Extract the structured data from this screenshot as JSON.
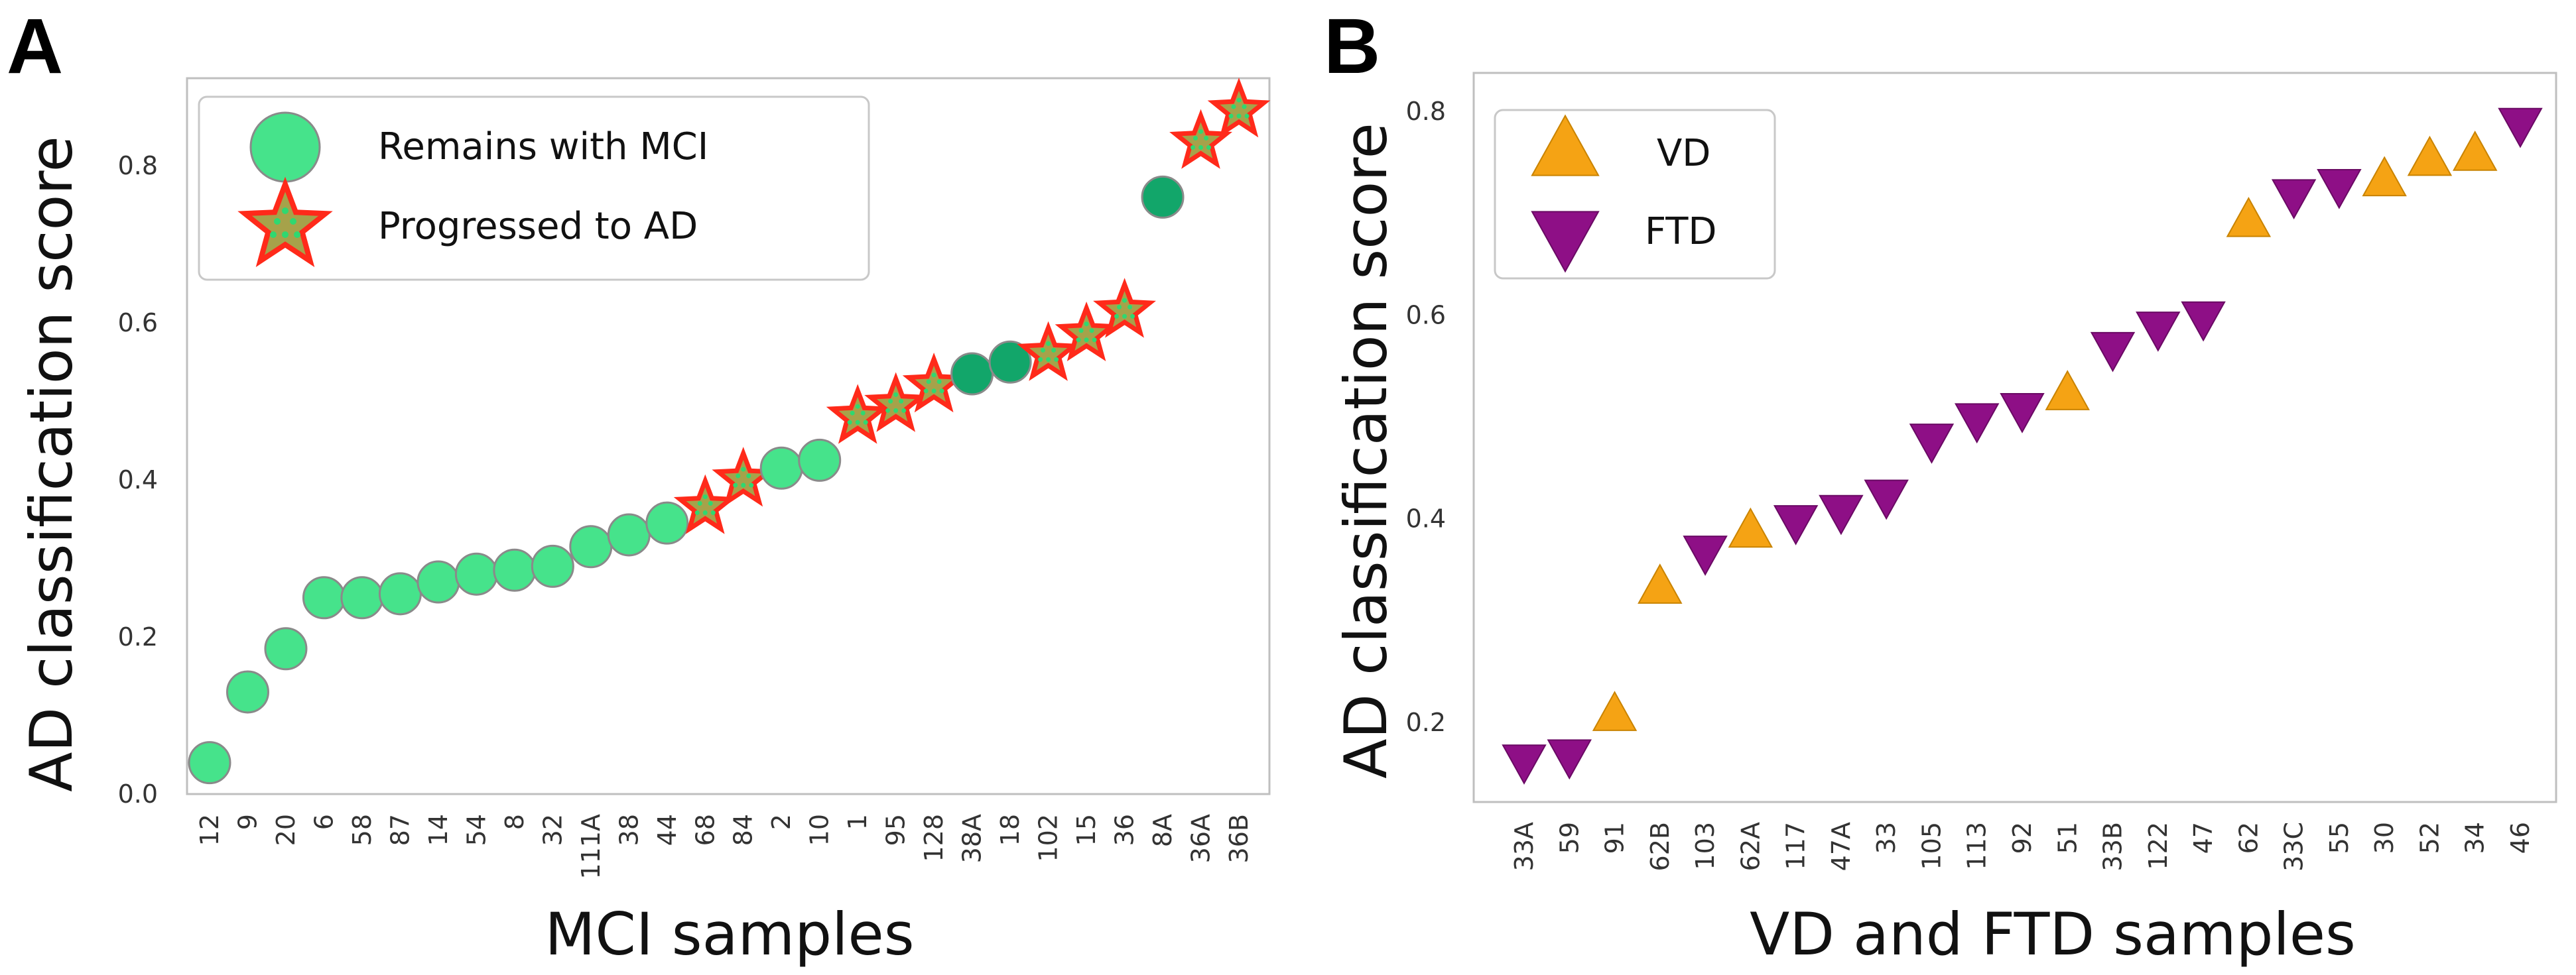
{
  "chart_data": [
    {
      "type": "scatter",
      "panel_label": "A",
      "title": "",
      "xlabel": "MCI samples",
      "ylabel": "AD classification score",
      "ylim": [
        0.0,
        0.9
      ],
      "yticks": [
        "0.0",
        "0.2",
        "0.4",
        "0.6",
        "0.8"
      ],
      "legend_position": "top-left",
      "legend": [
        {
          "label": "Remains with MCI",
          "marker": "circle",
          "color": "#46e38b"
        },
        {
          "label": "Progressed to AD",
          "marker": "star",
          "color": "#a6a24a",
          "edge": "#ff2a1a"
        }
      ],
      "colors": {
        "remains": "#46e38b",
        "remains_dark": "#12a66a",
        "progressed_fill": "#a6a24a",
        "progressed_edge": "#ff2a1a",
        "dots": "#2fd870"
      },
      "categories": [
        "12",
        "9",
        "20",
        "6",
        "58",
        "87",
        "14",
        "54",
        "8",
        "32",
        "111A",
        "38",
        "44",
        "68",
        "84",
        "2",
        "10",
        "1",
        "95",
        "128",
        "38A",
        "18",
        "102",
        "15",
        "36",
        "8A",
        "36A",
        "36B"
      ],
      "values": [
        0.04,
        0.13,
        0.185,
        0.25,
        0.25,
        0.255,
        0.27,
        0.28,
        0.285,
        0.29,
        0.315,
        0.33,
        0.345,
        0.365,
        0.4,
        0.415,
        0.425,
        0.48,
        0.495,
        0.52,
        0.535,
        0.55,
        0.56,
        0.585,
        0.615,
        0.76,
        0.83,
        0.87
      ],
      "groups": [
        "remains",
        "remains",
        "remains",
        "remains",
        "remains",
        "remains",
        "remains",
        "remains",
        "remains",
        "remains",
        "remains",
        "remains",
        "remains",
        "progressed",
        "progressed",
        "remains",
        "remains",
        "progressed",
        "progressed",
        "progressed",
        "remains_dark",
        "remains_dark",
        "progressed",
        "progressed",
        "progressed",
        "remains_dark",
        "progressed",
        "progressed"
      ]
    },
    {
      "type": "scatter",
      "panel_label": "B",
      "title": "",
      "xlabel": "VD and FTD samples",
      "ylabel": "AD classification score",
      "ylim": [
        0.15,
        0.82
      ],
      "yticks": [
        "0.2",
        "0.4",
        "0.6",
        "0.8"
      ],
      "legend_position": "top-left",
      "legend": [
        {
          "label": "VD",
          "marker": "triangle-up",
          "color": "#f5a314"
        },
        {
          "label": "FTD",
          "marker": "triangle-down",
          "color": "#8e0f86"
        }
      ],
      "colors": {
        "VD": "#f5a314",
        "FTD": "#8e0f86"
      },
      "categories": [
        "33A",
        "59",
        "91",
        "62B",
        "103",
        "62A",
        "117",
        "47A",
        "33",
        "105",
        "113",
        "92",
        "51",
        "33B",
        "122",
        "47",
        "62",
        "33C",
        "55",
        "30",
        "52",
        "34",
        "46"
      ],
      "values": [
        0.165,
        0.17,
        0.205,
        0.33,
        0.37,
        0.385,
        0.4,
        0.41,
        0.425,
        0.48,
        0.5,
        0.51,
        0.52,
        0.57,
        0.59,
        0.6,
        0.69,
        0.72,
        0.73,
        0.73,
        0.75,
        0.755,
        0.79
      ],
      "groups": [
        "FTD",
        "FTD",
        "VD",
        "VD",
        "FTD",
        "VD",
        "FTD",
        "FTD",
        "FTD",
        "FTD",
        "FTD",
        "FTD",
        "VD",
        "FTD",
        "FTD",
        "FTD",
        "VD",
        "FTD",
        "FTD",
        "VD",
        "VD",
        "VD",
        "FTD"
      ]
    }
  ]
}
